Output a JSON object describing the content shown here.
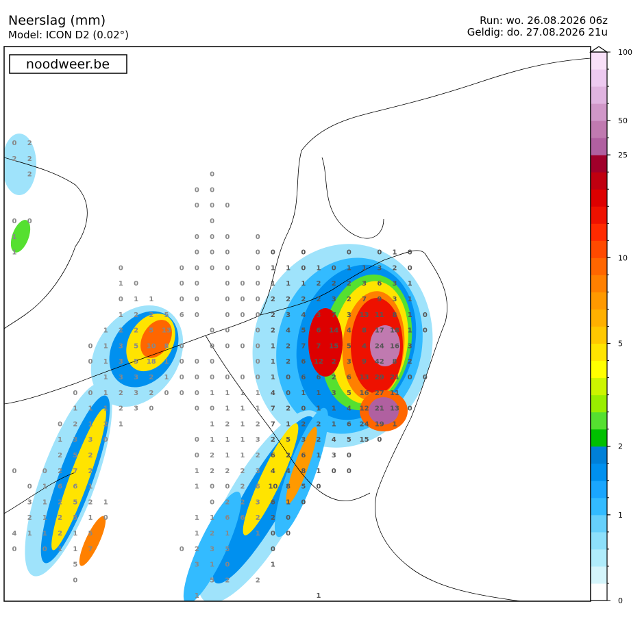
{
  "header": {
    "title": "Neerslag (mm)",
    "model": "Model: ICON D2 (0.02°)",
    "run": "Run: wo. 26.08.2026 06z",
    "valid": "Geldig: do. 27.08.2026 21u"
  },
  "logo": "noodweer.be",
  "colorbar": {
    "levels": [
      0,
      0.2,
      0.4,
      0.6,
      0.8,
      1,
      1.25,
      1.5,
      1.75,
      2,
      2.5,
      3,
      3.5,
      4,
      4.5,
      5,
      6,
      7,
      8,
      9,
      10,
      12.5,
      15,
      17.5,
      20,
      22.5,
      25,
      37.5,
      50,
      62.5,
      75,
      87.5,
      100
    ],
    "colors": [
      "#ffffff",
      "#d5f5fb",
      "#b0ecfb",
      "#8de0fb",
      "#66d0fb",
      "#33bbff",
      "#1aa6ff",
      "#0090ef",
      "#0080d8",
      "#00c000",
      "#55e030",
      "#99ee00",
      "#ccf500",
      "#ffff00",
      "#ffe400",
      "#ffc800",
      "#ffb000",
      "#ff9900",
      "#ff8000",
      "#ff6600",
      "#ff4a00",
      "#ff2a00",
      "#ee1100",
      "#dd0000",
      "#c00010",
      "#a0002a",
      "#b060a0",
      "#c07ab0",
      "#d097c8",
      "#e0b4e0",
      "#edcaf0",
      "#f8e0f8"
    ],
    "ticks": [
      0,
      1,
      2,
      5,
      10,
      25,
      50,
      100
    ]
  },
  "grid": {
    "rows": [
      [
        0,
        2,
        null,
        null,
        null,
        null,
        null,
        null,
        null,
        null,
        null,
        null,
        null,
        null,
        null,
        null,
        null,
        null,
        null,
        null,
        null,
        null,
        null,
        null,
        null,
        null,
        null,
        null
      ],
      [
        2,
        2,
        null,
        null,
        null,
        null,
        null,
        null,
        null,
        null,
        null,
        null,
        null,
        null,
        null,
        null,
        null,
        null,
        null,
        null,
        null,
        null,
        null,
        null,
        null,
        null,
        null,
        null
      ],
      [
        null,
        2,
        null,
        null,
        null,
        null,
        null,
        null,
        null,
        null,
        null,
        null,
        null,
        0,
        null,
        null,
        null,
        null,
        null,
        null,
        null,
        null,
        null,
        null,
        null,
        null,
        null,
        null
      ],
      [
        null,
        null,
        null,
        null,
        null,
        null,
        null,
        null,
        null,
        null,
        null,
        null,
        0,
        0,
        null,
        null,
        null,
        null,
        null,
        null,
        null,
        null,
        null,
        null,
        null,
        null,
        null,
        null
      ],
      [
        null,
        null,
        null,
        null,
        null,
        null,
        null,
        null,
        null,
        null,
        null,
        null,
        0,
        0,
        0,
        null,
        null,
        null,
        null,
        null,
        null,
        null,
        null,
        null,
        null,
        null,
        null,
        null
      ],
      [
        0,
        0,
        null,
        null,
        null,
        null,
        null,
        null,
        null,
        null,
        null,
        null,
        null,
        0,
        null,
        null,
        null,
        null,
        null,
        null,
        null,
        null,
        null,
        null,
        null,
        null,
        null,
        null
      ],
      [
        1,
        null,
        null,
        null,
        null,
        null,
        null,
        null,
        null,
        null,
        null,
        null,
        0,
        0,
        0,
        null,
        0,
        null,
        null,
        null,
        null,
        null,
        null,
        null,
        null,
        null,
        null,
        null
      ],
      [
        1,
        null,
        null,
        null,
        null,
        null,
        null,
        null,
        null,
        null,
        null,
        null,
        0,
        0,
        0,
        null,
        0,
        0,
        null,
        0,
        null,
        null,
        0,
        null,
        0,
        1,
        0,
        null
      ],
      [
        null,
        null,
        null,
        null,
        null,
        null,
        null,
        0,
        null,
        null,
        null,
        0,
        0,
        0,
        0,
        null,
        0,
        1,
        1,
        0,
        1,
        0,
        1,
        1,
        3,
        2,
        0,
        null
      ],
      [
        null,
        null,
        null,
        null,
        null,
        null,
        null,
        1,
        0,
        null,
        null,
        0,
        0,
        null,
        0,
        0,
        0,
        1,
        1,
        1,
        2,
        2,
        2,
        3,
        6,
        3,
        1,
        null
      ],
      [
        null,
        null,
        null,
        null,
        null,
        null,
        null,
        0,
        1,
        1,
        null,
        0,
        0,
        null,
        0,
        0,
        0,
        2,
        2,
        2,
        2,
        3,
        2,
        7,
        9,
        3,
        1,
        null
      ],
      [
        null,
        null,
        null,
        null,
        null,
        null,
        null,
        1,
        2,
        2,
        5,
        6,
        0,
        null,
        0,
        0,
        0,
        2,
        3,
        4,
        3,
        7,
        3,
        13,
        11,
        8,
        1,
        0
      ],
      [
        null,
        null,
        null,
        null,
        null,
        null,
        1,
        2,
        2,
        5,
        13,
        null,
        null,
        0,
        0,
        null,
        0,
        2,
        4,
        5,
        6,
        14,
        4,
        8,
        17,
        18,
        1,
        0
      ],
      [
        null,
        null,
        null,
        null,
        null,
        0,
        1,
        3,
        5,
        10,
        8,
        0,
        null,
        0,
        0,
        0,
        0,
        1,
        2,
        7,
        7,
        15,
        5,
        4,
        24,
        16,
        3,
        null
      ],
      [
        null,
        null,
        null,
        null,
        null,
        0,
        1,
        3,
        5,
        18,
        1,
        0,
        0,
        0,
        null,
        null,
        0,
        1,
        2,
        6,
        12,
        2,
        3,
        9,
        42,
        8,
        2,
        null
      ],
      [
        null,
        null,
        null,
        null,
        null,
        null,
        1,
        3,
        3,
        2,
        1,
        0,
        0,
        0,
        0,
        0,
        0,
        1,
        0,
        6,
        6,
        2,
        6,
        13,
        29,
        21,
        0,
        0
      ],
      [
        null,
        null,
        null,
        null,
        0,
        0,
        1,
        2,
        3,
        2,
        0,
        0,
        0,
        1,
        1,
        1,
        1,
        4,
        0,
        1,
        1,
        3,
        5,
        16,
        27,
        11,
        null,
        null
      ],
      [
        null,
        null,
        null,
        null,
        1,
        1,
        1,
        2,
        3,
        0,
        null,
        null,
        0,
        0,
        1,
        1,
        1,
        7,
        2,
        0,
        1,
        1,
        4,
        12,
        21,
        13,
        0,
        null
      ],
      [
        null,
        null,
        null,
        0,
        2,
        1,
        2,
        1,
        null,
        null,
        null,
        null,
        null,
        1,
        2,
        1,
        2,
        7,
        1,
        2,
        2,
        1,
        6,
        24,
        19,
        1,
        null,
        null
      ],
      [
        null,
        null,
        null,
        1,
        3,
        3,
        0,
        null,
        null,
        null,
        null,
        null,
        0,
        1,
        1,
        1,
        3,
        2,
        5,
        3,
        2,
        4,
        5,
        15,
        0,
        null,
        null,
        null
      ],
      [
        null,
        null,
        null,
        2,
        5,
        2,
        null,
        null,
        null,
        null,
        null,
        null,
        0,
        2,
        1,
        1,
        2,
        6,
        2,
        6,
        1,
        3,
        0,
        null,
        null,
        null,
        null,
        null
      ],
      [
        0,
        null,
        0,
        2,
        7,
        2,
        null,
        null,
        null,
        null,
        null,
        null,
        1,
        2,
        2,
        2,
        3,
        4,
        4,
        8,
        1,
        0,
        0,
        null,
        null,
        null,
        null,
        null
      ],
      [
        null,
        0,
        1,
        6,
        6,
        1,
        null,
        null,
        null,
        null,
        null,
        null,
        1,
        0,
        0,
        2,
        6,
        10,
        8,
        5,
        0,
        null,
        null,
        null,
        null,
        null,
        null,
        null
      ],
      [
        null,
        3,
        1,
        2,
        5,
        2,
        1,
        null,
        null,
        null,
        null,
        null,
        null,
        0,
        2,
        2,
        3,
        6,
        1,
        0,
        null,
        null,
        null,
        null,
        null,
        null,
        null,
        null
      ],
      [
        null,
        2,
        1,
        2,
        5,
        1,
        0,
        null,
        null,
        null,
        null,
        null,
        1,
        1,
        6,
        6,
        2,
        2,
        0,
        null,
        null,
        null,
        null,
        null,
        null,
        null,
        null,
        null
      ],
      [
        4,
        1,
        1,
        2,
        1,
        5,
        null,
        null,
        null,
        null,
        null,
        null,
        1,
        2,
        1,
        null,
        1,
        0,
        0,
        null,
        null,
        null,
        null,
        null,
        null,
        null,
        null,
        null
      ],
      [
        0,
        null,
        0,
        1,
        1,
        7,
        null,
        null,
        null,
        null,
        null,
        0,
        2,
        3,
        5,
        null,
        null,
        0,
        null,
        null,
        null,
        null,
        null,
        null,
        null,
        null,
        null,
        null
      ],
      [
        null,
        null,
        null,
        null,
        5,
        null,
        null,
        null,
        null,
        null,
        null,
        null,
        3,
        1,
        0,
        null,
        null,
        1,
        null,
        null,
        null,
        null,
        null,
        null,
        null,
        null,
        null,
        null
      ],
      [
        null,
        null,
        null,
        null,
        0,
        null,
        null,
        null,
        null,
        null,
        null,
        null,
        null,
        5,
        2,
        null,
        2,
        null,
        null,
        null,
        null,
        null,
        null,
        null,
        null,
        null,
        null,
        null
      ],
      [
        null,
        null,
        null,
        null,
        null,
        null,
        null,
        null,
        null,
        null,
        null,
        null,
        1,
        null,
        null,
        null,
        null,
        null,
        null,
        null,
        1,
        null,
        null,
        null,
        null,
        null,
        null,
        null
      ]
    ]
  }
}
